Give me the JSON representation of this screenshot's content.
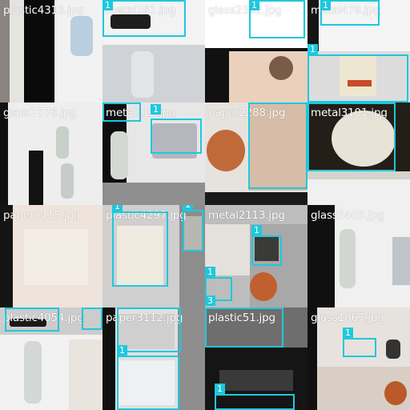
{
  "colors": {
    "box": "#1ec8de",
    "label_text": "#ffffff"
  },
  "tiles": [
    {
      "filename": "plastic4316.jpg",
      "boxes": []
    },
    {
      "filename": "metal181.jpg",
      "boxes": [
        {
          "cls": "1"
        }
      ]
    },
    {
      "filename": "glass2362.jpg",
      "boxes": [
        {
          "cls": "1"
        }
      ]
    },
    {
      "filename": "metal478.jpg",
      "boxes": [
        {
          "cls": "1"
        },
        {
          "cls": "1"
        }
      ]
    },
    {
      "filename": "glass1776.jpg",
      "boxes": []
    },
    {
      "filename": "metal112.jpg",
      "boxes": [
        {
          "cls": "1"
        },
        {
          "cls": "1"
        }
      ]
    },
    {
      "filename": "paper2288.jpg",
      "boxes": [
        {
          "cls": "3"
        }
      ]
    },
    {
      "filename": "metal3101.jpg",
      "boxes": [
        {
          "cls": "1"
        }
      ]
    },
    {
      "filename": "paper3415.jpg",
      "boxes": []
    },
    {
      "filename": "plastic4297.jpg",
      "boxes": [
        {
          "cls": "1"
        },
        {
          "cls": "1"
        }
      ]
    },
    {
      "filename": "metal2113.jpg",
      "boxes": [
        {
          "cls": "1"
        },
        {
          "cls": "1"
        },
        {
          "cls": "3"
        }
      ]
    },
    {
      "filename": "glass3405.jpg",
      "boxes": []
    },
    {
      "filename": "plastic4054.jpg",
      "boxes": [
        {
          "cls": "1"
        },
        {
          "cls": "1"
        }
      ]
    },
    {
      "filename": "paper3112.jpg",
      "boxes": [
        {
          "cls": "1"
        },
        {
          "cls": "1"
        }
      ]
    },
    {
      "filename": "plastic51.jpg",
      "boxes": [
        {
          "cls": "1"
        }
      ]
    },
    {
      "filename": "glass1067.jpg",
      "boxes": [
        {
          "cls": "1"
        }
      ]
    }
  ]
}
